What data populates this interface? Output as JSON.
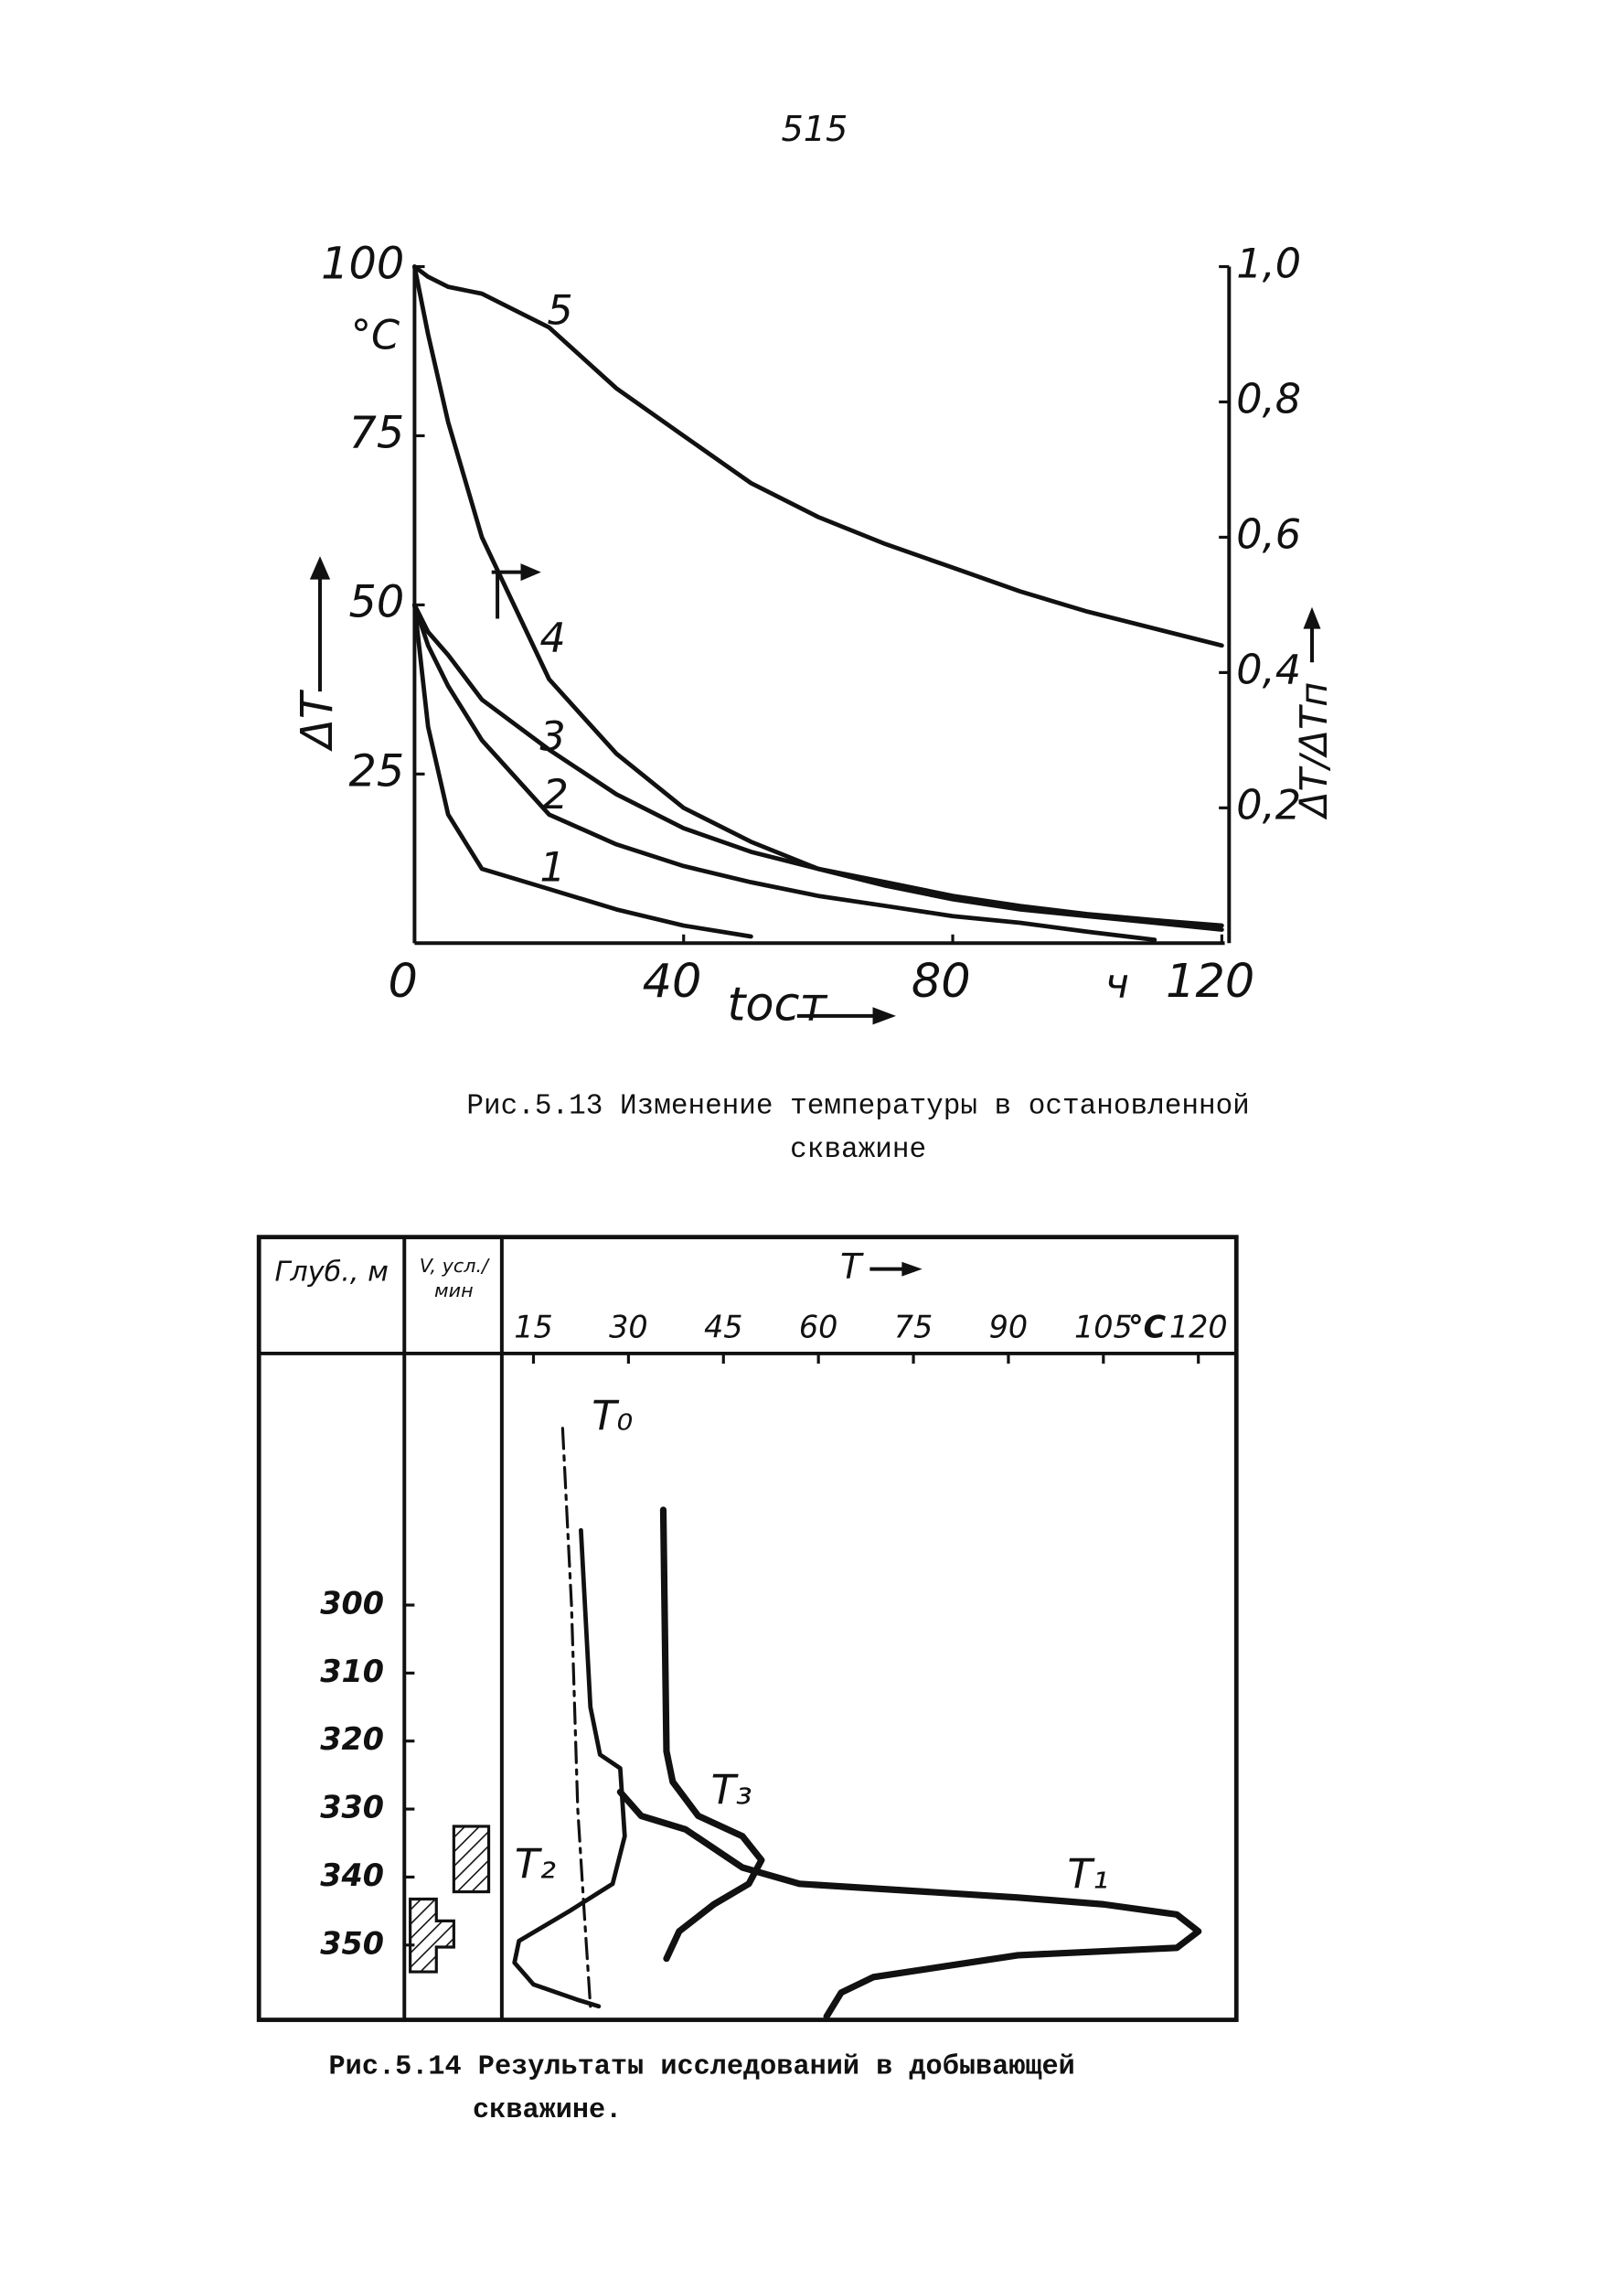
{
  "page_number": "515",
  "chart_data": [
    {
      "type": "line",
      "title": "Рис.5.13 Изменение температуры в остановленной скважине",
      "x_label": "tост",
      "x_unit": "ч",
      "y_label": "ΔT",
      "y_unit": "°C",
      "y2_label": "ΔT/ΔTп",
      "x": [
        0,
        2,
        5,
        10,
        20,
        30,
        40,
        50,
        60,
        70,
        80,
        90,
        100,
        110,
        120
      ],
      "xlim": [
        0,
        120
      ],
      "xticks": [
        0,
        40,
        80,
        120
      ],
      "ylim": [
        0,
        100
      ],
      "yticks": [
        25,
        50,
        75,
        100
      ],
      "y2lim": [
        0,
        1
      ],
      "y2ticks": [
        {
          "value": 0.2,
          "label": "0,2"
        },
        {
          "value": 0.4,
          "label": "0,4"
        },
        {
          "value": 0.6,
          "label": "0,6"
        },
        {
          "value": 0.8,
          "label": "0,8"
        },
        {
          "value": 1.0,
          "label": "1,0"
        }
      ],
      "series": [
        {
          "name": "1",
          "color": "#111111",
          "values": [
            50,
            32,
            19,
            11,
            8,
            5,
            2.6,
            1,
            null,
            null,
            null,
            null,
            null,
            null,
            null
          ]
        },
        {
          "name": "2",
          "color": "#111111",
          "values": [
            50,
            44,
            38,
            30,
            19,
            14.6,
            11.4,
            9,
            7,
            5.5,
            4,
            3,
            1.7,
            0.5,
            null
          ]
        },
        {
          "name": "3",
          "color": "#111111",
          "values": [
            50,
            46,
            42.6,
            36,
            28.6,
            22,
            17,
            13.5,
            11,
            8.5,
            6.5,
            5,
            4,
            3,
            2
          ]
        },
        {
          "name": "4",
          "color": "#111111",
          "axis": "y2",
          "values": [
            1.0,
            0.9,
            0.77,
            0.6,
            0.39,
            0.28,
            0.2,
            0.15,
            0.11,
            0.09,
            0.07,
            0.055,
            0.043,
            0.034,
            0.026
          ]
        },
        {
          "name": "5",
          "color": "#111111",
          "values": [
            100,
            98.5,
            97,
            96,
            91,
            82,
            75,
            68,
            63,
            59,
            55.5,
            52,
            49,
            46.5,
            44
          ]
        }
      ]
    },
    {
      "type": "line",
      "title": "Рис.5.14 Результаты исследований в добывающей скважине.",
      "x_label": "T",
      "x_unit": "°C",
      "depth_label": "Глуб., м",
      "rate_label": "V, усл./мин",
      "xlim": [
        10,
        126
      ],
      "xticks": [
        15,
        30,
        45,
        60,
        75,
        90,
        105,
        120
      ],
      "ylim": [
        263,
        361
      ],
      "y_inverted": true,
      "yticks": [
        300,
        310,
        320,
        330,
        340,
        350
      ],
      "series": [
        {
          "name": "T₀",
          "color": "#111111",
          "dash": "dash-dot",
          "x": [
            19.6,
            21,
            22,
            23,
            24
          ],
          "values": [
            274,
            300,
            330,
            345,
            359
          ]
        },
        {
          "name": "T₁",
          "color": "#111111",
          "x": [
            28.7,
            32,
            39,
            48,
            57,
            91.5,
            105,
            116.6,
            120,
            116.6,
            91.5,
            68.7,
            63.6,
            61.3
          ],
          "values": [
            327.5,
            331,
            333,
            338.6,
            341,
            343,
            344,
            345.5,
            348,
            350.4,
            351.5,
            354.7,
            357,
            360.5
          ]
        },
        {
          "name": "T₂",
          "color": "#111111",
          "x": [
            22.5,
            24,
            25.5,
            28.7,
            29.4,
            27.5,
            20.7,
            12.7,
            12,
            15,
            21.8,
            25.3
          ],
          "values": [
            289,
            315,
            322,
            324,
            334,
            341,
            345,
            349.4,
            352.6,
            355.8,
            358,
            359
          ]
        },
        {
          "name": "T₃",
          "color": "#111111",
          "x": [
            35.5,
            36,
            37,
            41,
            48,
            51,
            49,
            43.5,
            38,
            36
          ],
          "values": [
            286,
            321.5,
            326,
            331,
            334,
            337.5,
            341,
            344,
            348,
            352
          ]
        }
      ]
    }
  ]
}
